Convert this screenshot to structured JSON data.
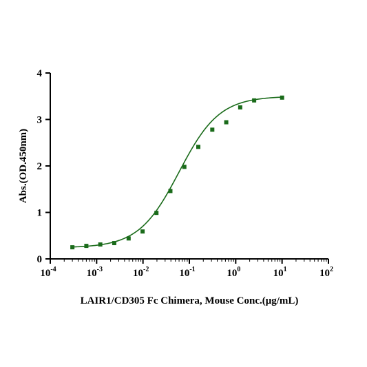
{
  "chart_data": {
    "type": "scatter",
    "xlabel": "LAIR1/CD305 Fc Chimera, Mouse Conc.(μg/mL)",
    "ylabel": "Abs.(OD.450nm)",
    "x_scale": "log",
    "xlim": [
      0.0001,
      100
    ],
    "ylim": [
      0,
      4
    ],
    "x_ticks": [
      {
        "base": "10",
        "exp": "-4"
      },
      {
        "base": "10",
        "exp": "-3"
      },
      {
        "base": "10",
        "exp": "-2"
      },
      {
        "base": "10",
        "exp": "-1"
      },
      {
        "base": "10",
        "exp": "0"
      },
      {
        "base": "10",
        "exp": "1"
      },
      {
        "base": "10",
        "exp": "2"
      }
    ],
    "y_ticks": [
      "0",
      "1",
      "2",
      "3",
      "4"
    ],
    "grid": false,
    "colors": {
      "series": "#1a6b1a",
      "axis": "#000000"
    },
    "series": [
      {
        "marker": "square",
        "points": [
          {
            "x": 0.0003,
            "y": 0.25
          },
          {
            "x": 0.0006,
            "y": 0.28
          },
          {
            "x": 0.0012,
            "y": 0.31
          },
          {
            "x": 0.0024,
            "y": 0.34
          },
          {
            "x": 0.0049,
            "y": 0.44
          },
          {
            "x": 0.0098,
            "y": 0.59
          },
          {
            "x": 0.0195,
            "y": 0.99
          },
          {
            "x": 0.039,
            "y": 1.46
          },
          {
            "x": 0.078,
            "y": 1.98
          },
          {
            "x": 0.156,
            "y": 2.41
          },
          {
            "x": 0.3125,
            "y": 2.78
          },
          {
            "x": 0.625,
            "y": 2.94
          },
          {
            "x": 1.25,
            "y": 3.26
          },
          {
            "x": 2.5,
            "y": 3.41
          },
          {
            "x": 10,
            "y": 3.47
          }
        ],
        "fit": {
          "bottom": 0.24,
          "top": 3.5,
          "ec50": 0.06,
          "hill": 1.0,
          "x_range": [
            0.0003,
            10
          ]
        }
      }
    ]
  }
}
